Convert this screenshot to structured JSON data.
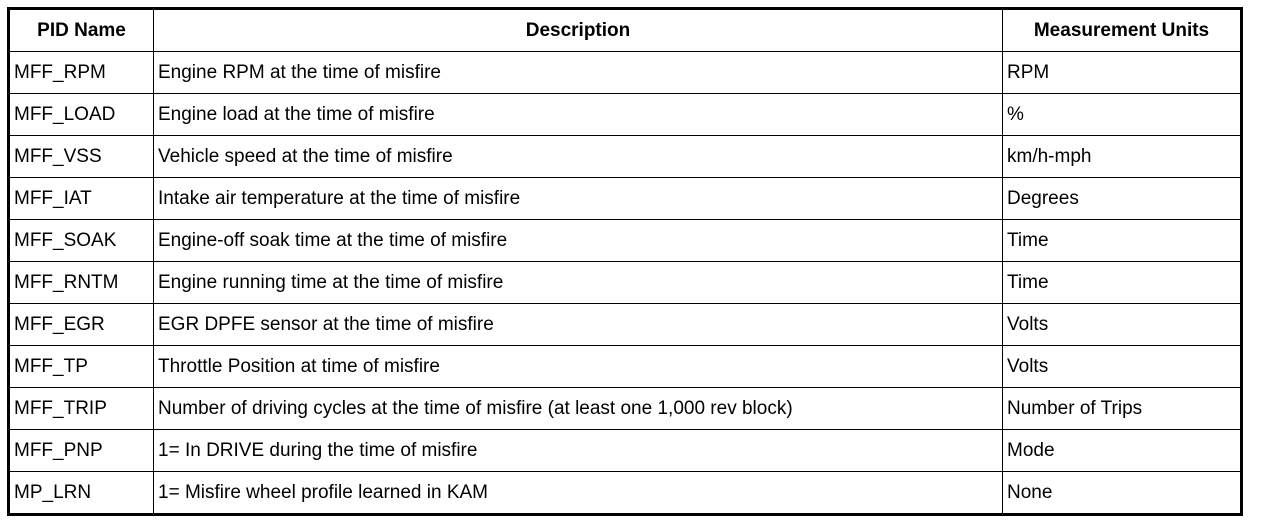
{
  "table": {
    "headers": [
      "PID Name",
      "Description",
      "Measurement Units"
    ],
    "rows": [
      [
        "MFF_RPM",
        "Engine RPM at the time of misfire",
        "RPM"
      ],
      [
        "MFF_LOAD",
        "Engine load at the time of misfire",
        "%"
      ],
      [
        "MFF_VSS",
        "Vehicle speed at the time of misfire",
        "km/h-mph"
      ],
      [
        "MFF_IAT",
        "Intake air temperature at the time of misfire",
        "Degrees"
      ],
      [
        "MFF_SOAK",
        "Engine-off soak time at the time of misfire",
        "Time"
      ],
      [
        "MFF_RNTM",
        "Engine running time at the time of misfire",
        "Time"
      ],
      [
        "MFF_EGR",
        "EGR DPFE sensor at the time of misfire",
        "Volts"
      ],
      [
        "MFF_TP",
        "Throttle Position at time of misfire",
        "Volts"
      ],
      [
        "MFF_TRIP",
        "Number of driving cycles at the time of misfire (at least one 1,000 rev block)",
        "Number of Trips"
      ],
      [
        "MFF_PNP",
        "1= In DRIVE during the time of misfire",
        "Mode"
      ],
      [
        "MP_LRN",
        "1= Misfire wheel profile learned in KAM",
        "None"
      ]
    ]
  }
}
